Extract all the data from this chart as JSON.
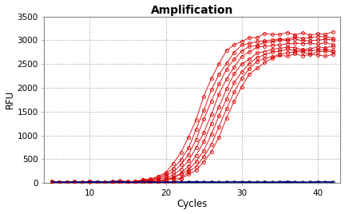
{
  "title": "Amplification",
  "xlabel": "Cycles",
  "ylabel": "RFU",
  "xlim": [
    4,
    43
  ],
  "ylim": [
    0,
    3500
  ],
  "yticks": [
    0,
    500,
    1000,
    1500,
    2000,
    2500,
    3000,
    3500
  ],
  "xticks": [
    10,
    20,
    30,
    40
  ],
  "bg_color": "#ffffff",
  "plot_bg_color": "#ffffff",
  "red_color": "#dd0000",
  "blue_color": "#000080",
  "dark_color": "#444444",
  "num_red_curves": 8,
  "cycles_start": 5,
  "cycles_total": 42,
  "amp_starts": [
    24.5,
    25.0,
    25.5,
    26.0,
    26.5,
    27.0,
    27.5,
    28.0
  ],
  "max_vals": [
    3150,
    3050,
    3000,
    2950,
    2850,
    2800,
    2750,
    2700
  ],
  "steepness": 0.55
}
